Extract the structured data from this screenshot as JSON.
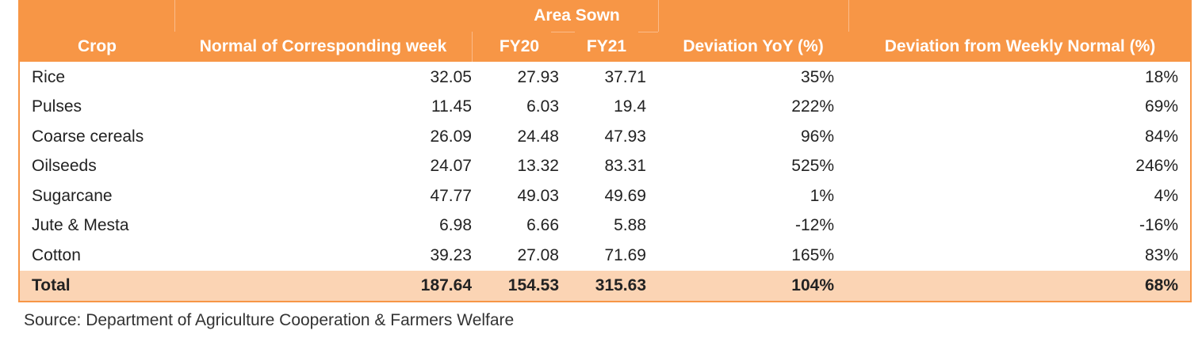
{
  "table": {
    "group_header": "Area Sown",
    "columns": [
      "Crop",
      "Normal of Corresponding week",
      "FY20",
      "FY21",
      "Deviation YoY (%)",
      "Deviation from Weekly Normal (%)"
    ],
    "rows": [
      {
        "crop": "Rice",
        "normal": "32.05",
        "fy20": "27.93",
        "fy21": "37.71",
        "dev_yoy": "35%",
        "dev_normal": "18%"
      },
      {
        "crop": "Pulses",
        "normal": "11.45",
        "fy20": "6.03",
        "fy21": "19.4",
        "dev_yoy": "222%",
        "dev_normal": "69%"
      },
      {
        "crop": "Coarse cereals",
        "normal": "26.09",
        "fy20": "24.48",
        "fy21": "47.93",
        "dev_yoy": "96%",
        "dev_normal": "84%"
      },
      {
        "crop": "Oilseeds",
        "normal": "24.07",
        "fy20": "13.32",
        "fy21": "83.31",
        "dev_yoy": "525%",
        "dev_normal": "246%"
      },
      {
        "crop": "Sugarcane",
        "normal": "47.77",
        "fy20": "49.03",
        "fy21": "49.69",
        "dev_yoy": "1%",
        "dev_normal": "4%"
      },
      {
        "crop": "Jute & Mesta",
        "normal": "6.98",
        "fy20": "6.66",
        "fy21": "5.88",
        "dev_yoy": "-12%",
        "dev_normal": "-16%"
      },
      {
        "crop": "Cotton",
        "normal": "39.23",
        "fy20": "27.08",
        "fy21": "71.69",
        "dev_yoy": "165%",
        "dev_normal": "83%"
      },
      {
        "crop": "Total",
        "normal": "187.64",
        "fy20": "154.53",
        "fy21": "315.63",
        "dev_yoy": "104%",
        "dev_normal": "68%"
      }
    ]
  },
  "source": "Source: Department of Agriculture Cooperation & Farmers Welfare",
  "colors": {
    "header_bg": "#f79646",
    "header_text": "#ffffff",
    "total_row_bg": "#fbd4b4",
    "border": "#f79646"
  }
}
